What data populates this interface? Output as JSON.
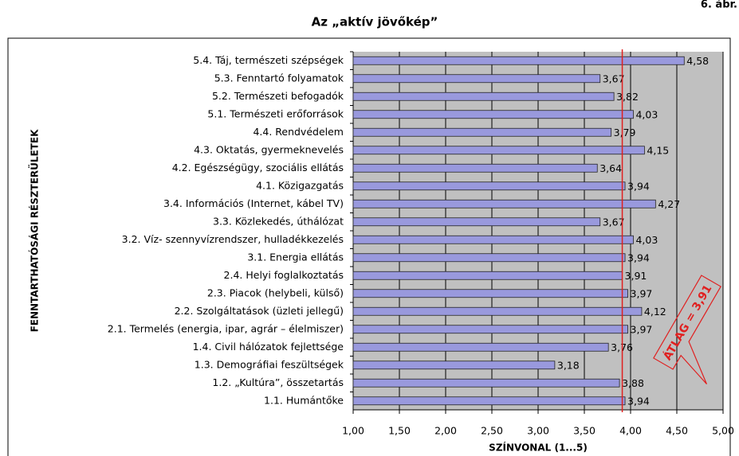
{
  "chart_data": {
    "type": "hbar",
    "figure_label": "6. ábr.",
    "title": "Az „aktív jövőkép”",
    "y_axis_label": "FENNTARTHATÓSÁGI RÉSZTERÜLETEK",
    "x_axis_label": "SZÍNVONAL (1...5)",
    "categories": [
      "5.4. Táj, természeti szépségek",
      "5.3. Fenntartó folyamatok",
      "5.2. Természeti befogadók",
      "5.1. Természeti erőforrások",
      "4.4. Rendvédelem",
      "4.3. Oktatás, gyermeknevelés",
      "4.2. Egészségügy, szociális ellátás",
      "4.1. Közigazgatás",
      "3.4. Információs (Internet, kábel TV)",
      "3.3. Közlekedés, úthálózat",
      "3.2. Víz- szennyvízrendszer, hulladékkezelés",
      "3.1. Energia ellátás",
      "2.4. Helyi foglalkoztatás",
      "2.3. Piacok (helybeli, külső)",
      "2.2. Szolgáltatások (üzleti jellegű)",
      "2.1. Termelés (energia, ipar, agrár – élelmiszer)",
      "1.4. Civil hálózatok fejlettsége",
      "1.3. Demográfiai feszültségek",
      "1.2. „Kultúra”, összetartás",
      "1.1. Humántőke"
    ],
    "values": [
      4.58,
      3.67,
      3.82,
      4.03,
      3.79,
      4.15,
      3.64,
      3.94,
      4.27,
      3.67,
      4.03,
      3.94,
      3.91,
      3.97,
      4.12,
      3.97,
      3.76,
      3.18,
      3.88,
      3.94
    ],
    "value_labels": [
      "4,58",
      "3,67",
      "3,82",
      "4,03",
      "3,79",
      "4,15",
      "3,64",
      "3,94",
      "4,27",
      "3,67",
      "4,03",
      "3,94",
      "3,91",
      "3,97",
      "4,12",
      "3,97",
      "3,76",
      "3,18",
      "3,88",
      "3,94"
    ],
    "color": "#9999dd",
    "average": 3.91,
    "average_label": "ÁTLAG = 3,91",
    "average_color": "#e02020",
    "xlim": [
      1,
      5
    ],
    "xticks": [
      {
        "value": 1,
        "label": "1,00"
      },
      {
        "value": 1.5,
        "label": "1,50"
      },
      {
        "value": 2,
        "label": "2,00"
      },
      {
        "value": 2.5,
        "label": "2,50"
      },
      {
        "value": 3,
        "label": "3,00"
      },
      {
        "value": 3.5,
        "label": "3,50"
      },
      {
        "value": 4,
        "label": "4,00"
      },
      {
        "value": 4.5,
        "label": "4,50"
      },
      {
        "value": 5,
        "label": "5,00"
      }
    ],
    "grid": true
  }
}
